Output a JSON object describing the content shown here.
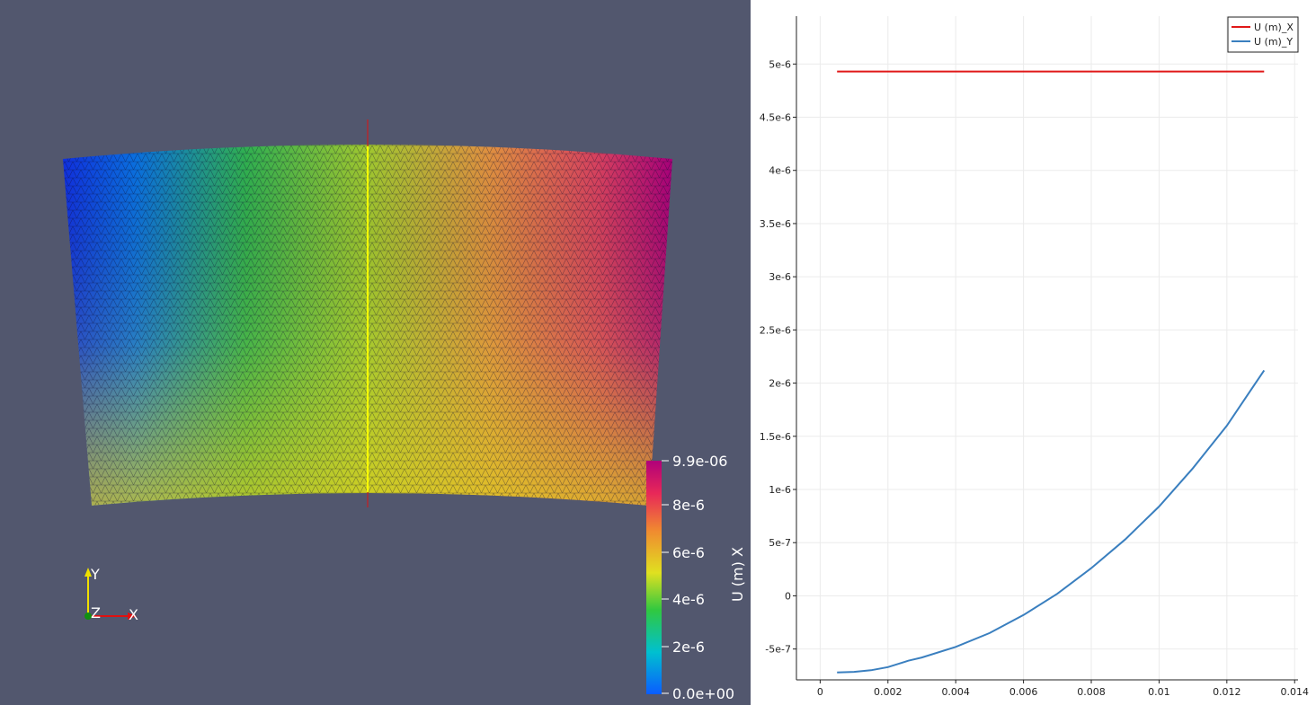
{
  "viewport": {
    "background": "#52576e",
    "colorbar": {
      "title": "U (m) X",
      "labels": [
        "9.9e-06",
        "8e-6",
        "6e-6",
        "4e-6",
        "2e-6",
        "0.0e+00"
      ],
      "colormap": [
        "#0a5cff",
        "#00c8c8",
        "#2bc830",
        "#e8e020",
        "#f08030",
        "#e8205a",
        "#b0007a"
      ]
    },
    "orientation_axes": {
      "x_label": "X",
      "y_label": "Y",
      "z_label": "Z",
      "x_color": "#e01010",
      "y_color": "#f0e000",
      "z_color": "#109010"
    },
    "probe_line_color": "#ffff00",
    "mesh_colors": {
      "left": "#1030e0",
      "top_mid": "#30c040",
      "bottom": "#d8d020",
      "right_top": "#b00070",
      "right_mid": "#e08040"
    }
  },
  "plot": {
    "legend": [
      {
        "name": "U (m)_X",
        "color": "#e01818"
      },
      {
        "name": "U (m)_Y",
        "color": "#3a7fbf"
      }
    ]
  },
  "chart_data": {
    "type": "line",
    "title": "",
    "xlabel": "",
    "ylabel": "",
    "xlim": [
      -0.0007,
      0.0141
    ],
    "ylim": [
      -7.9e-07,
      5.45e-06
    ],
    "xticks": [
      "0",
      "0.002",
      "0.004",
      "0.006",
      "0.008",
      "0.01",
      "0.012",
      "0.014"
    ],
    "yticks": [
      "5e-6",
      "4.5e-6",
      "4e-6",
      "3.5e-6",
      "3e-6",
      "2.5e-6",
      "2e-6",
      "1.5e-6",
      "1e-6",
      "5e-7",
      "0",
      "-5e-7"
    ],
    "xtick_values": [
      0,
      0.002,
      0.004,
      0.006,
      0.008,
      0.01,
      0.012,
      0.014
    ],
    "ytick_values": [
      5e-06,
      4.5e-06,
      4e-06,
      3.5e-06,
      3e-06,
      2.5e-06,
      2e-06,
      1.5e-06,
      1e-06,
      5e-07,
      0,
      -5e-07
    ],
    "grid": true,
    "legend_position": "top-right",
    "series": [
      {
        "name": "U (m)_X",
        "color": "#e01818",
        "x": [
          0.0005,
          0.0131
        ],
        "y": [
          4.93e-06,
          4.93e-06
        ]
      },
      {
        "name": "U (m)_Y",
        "color": "#3a7fbf",
        "x": [
          0.0005,
          0.001,
          0.0015,
          0.002,
          0.0025,
          0.0026,
          0.003,
          0.004,
          0.005,
          0.006,
          0.007,
          0.008,
          0.009,
          0.01,
          0.011,
          0.012,
          0.0131
        ],
        "y": [
          -7.2e-07,
          -7.15e-07,
          -7e-07,
          -6.7e-07,
          -6.2e-07,
          -6.1e-07,
          -5.8e-07,
          -4.8e-07,
          -3.5e-07,
          -1.8e-07,
          2e-08,
          2.6e-07,
          5.3e-07,
          8.4e-07,
          1.2e-06,
          1.6e-06,
          2.12e-06
        ]
      }
    ]
  }
}
